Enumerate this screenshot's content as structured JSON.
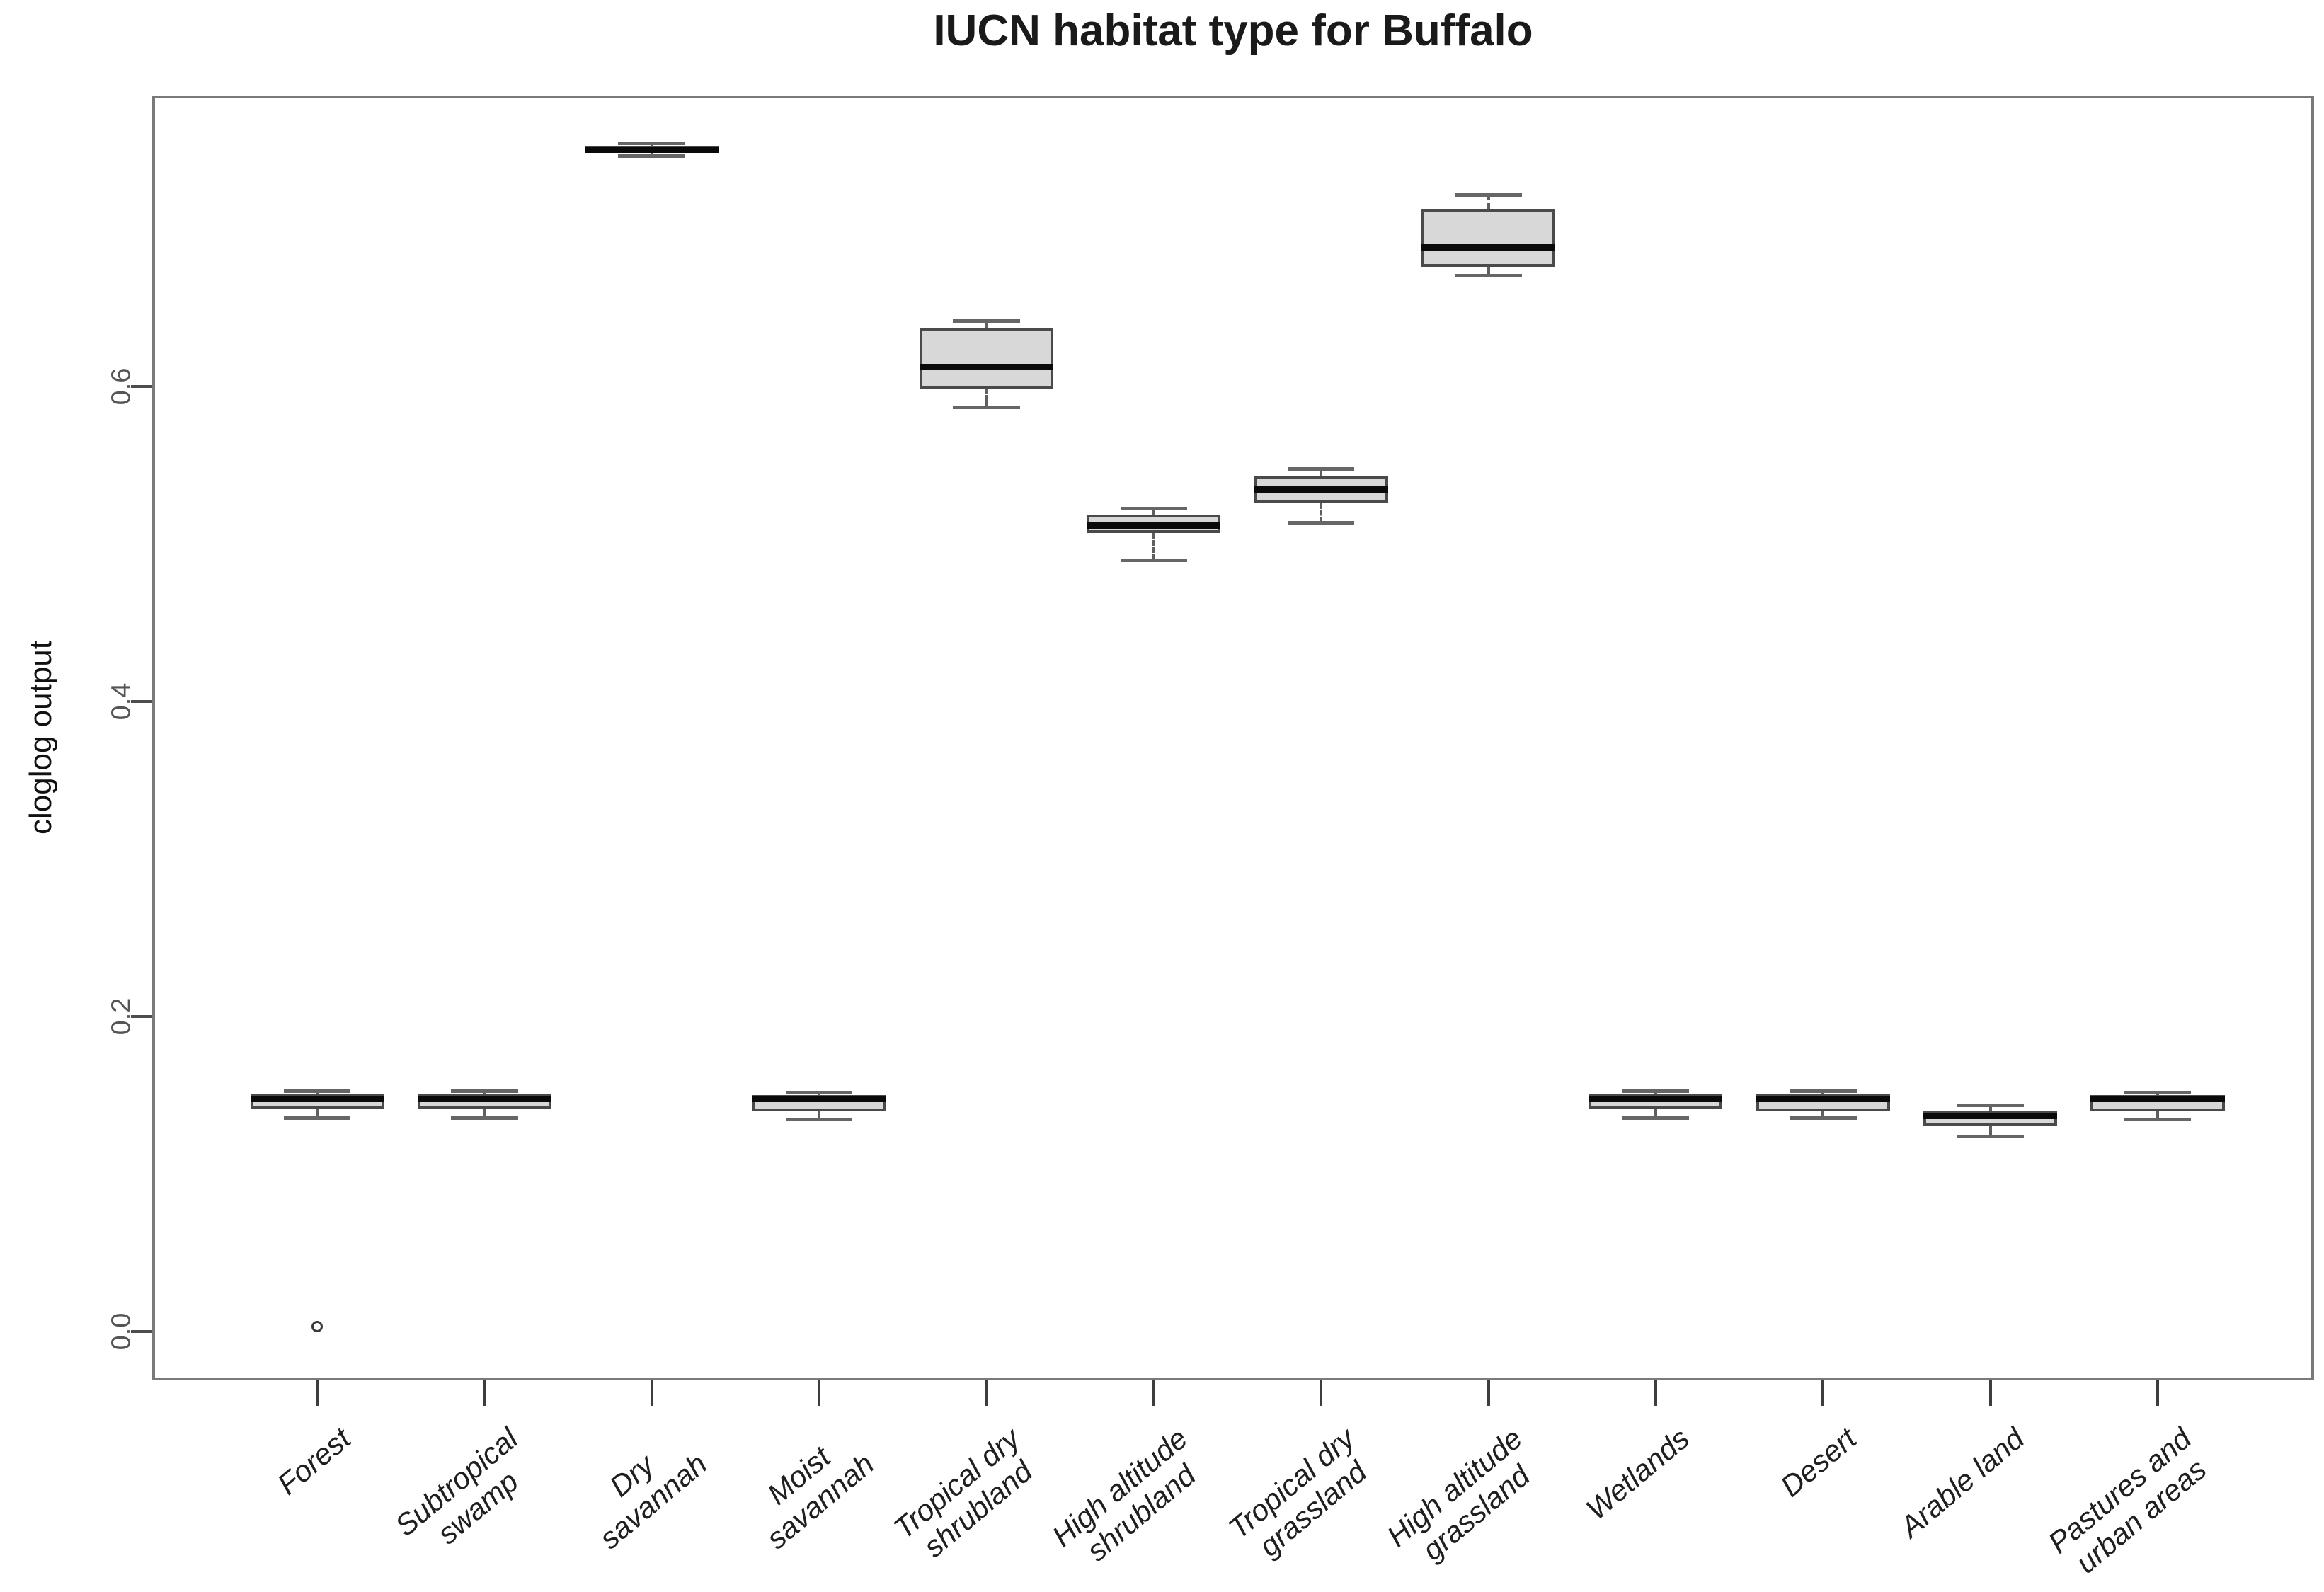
{
  "title": "IUCN habitat type for Buffalo",
  "y_axis_title": "cloglog output",
  "chart_data": {
    "type": "box",
    "title": "IUCN habitat type for Buffalo",
    "xlabel": "",
    "ylabel": "cloglog output",
    "grid": false,
    "legend": "none",
    "ylim": [
      -0.031,
      0.785
    ],
    "xlim": [
      0.014,
      12.935
    ],
    "boxwex": 0.8,
    "staple_frac": 0.5,
    "yticks": {
      "values": [
        0.0,
        0.2,
        0.4,
        0.6
      ],
      "labels": [
        "0.0",
        "0.2",
        "0.4",
        "0.6"
      ]
    },
    "categories": [
      [
        "Forest"
      ],
      [
        "Subtropical",
        "swamp"
      ],
      [
        "Dry",
        "savannah"
      ],
      [
        "Moist",
        "savannah"
      ],
      [
        "Tropical dry",
        "shrubland"
      ],
      [
        "High altitude",
        "shrubland"
      ],
      [
        "Tropical dry",
        "grassland"
      ],
      [
        "High altitude",
        "grassland"
      ],
      [
        "Wetlands"
      ],
      [
        "Desert"
      ],
      [
        "Arable land"
      ],
      [
        "Pastures and",
        "urban areas"
      ]
    ],
    "series": [
      {
        "name": "Forest",
        "position": 1,
        "whisker_low": 0.136,
        "q1": 0.141,
        "median": 0.148,
        "q3": 0.151,
        "whisker_high": 0.153,
        "outliers": [
          0.003
        ]
      },
      {
        "name": "Subtropical swamp",
        "position": 2,
        "whisker_low": 0.136,
        "q1": 0.141,
        "median": 0.148,
        "q3": 0.151,
        "whisker_high": 0.153,
        "outliers": []
      },
      {
        "name": "Dry savannah",
        "position": 3,
        "whisker_low": 0.747,
        "q1": 0.749,
        "median": 0.751,
        "q3": 0.753,
        "whisker_high": 0.755,
        "outliers": []
      },
      {
        "name": "Moist savannah",
        "position": 4,
        "whisker_low": 0.135,
        "q1": 0.14,
        "median": 0.148,
        "q3": 0.15,
        "whisker_high": 0.152,
        "outliers": []
      },
      {
        "name": "Tropical dry shrubland",
        "position": 5,
        "whisker_low": 0.587,
        "q1": 0.599,
        "median": 0.613,
        "q3": 0.637,
        "whisker_high": 0.642,
        "outliers": []
      },
      {
        "name": "High altitude shrubland",
        "position": 6,
        "whisker_low": 0.49,
        "q1": 0.507,
        "median": 0.512,
        "q3": 0.519,
        "whisker_high": 0.523,
        "outliers": []
      },
      {
        "name": "Tropical dry grassland",
        "position": 7,
        "whisker_low": 0.514,
        "q1": 0.526,
        "median": 0.535,
        "q3": 0.543,
        "whisker_high": 0.548,
        "outliers": []
      },
      {
        "name": "High altitude grassland",
        "position": 8,
        "whisker_low": 0.671,
        "q1": 0.676,
        "median": 0.689,
        "q3": 0.713,
        "whisker_high": 0.722,
        "outliers": []
      },
      {
        "name": "Wetlands",
        "position": 9,
        "whisker_low": 0.136,
        "q1": 0.141,
        "median": 0.148,
        "q3": 0.151,
        "whisker_high": 0.153,
        "outliers": []
      },
      {
        "name": "Desert",
        "position": 10,
        "whisker_low": 0.136,
        "q1": 0.14,
        "median": 0.148,
        "q3": 0.151,
        "whisker_high": 0.153,
        "outliers": []
      },
      {
        "name": "Arable land",
        "position": 11,
        "whisker_low": 0.124,
        "q1": 0.131,
        "median": 0.137,
        "q3": 0.14,
        "whisker_high": 0.144,
        "outliers": []
      },
      {
        "name": "Pastures and urban areas",
        "position": 12,
        "whisker_low": 0.135,
        "q1": 0.14,
        "median": 0.148,
        "q3": 0.15,
        "whisker_high": 0.152,
        "outliers": []
      }
    ],
    "colors": {
      "box_fill": "#d8d8d8",
      "box_border": "#4a4a4a",
      "median": "#0a0a0a",
      "whisker": "#5f5f5f",
      "frame": "#7a7a7a",
      "tick_label": "#555555",
      "title": "#1a1a1a"
    }
  }
}
